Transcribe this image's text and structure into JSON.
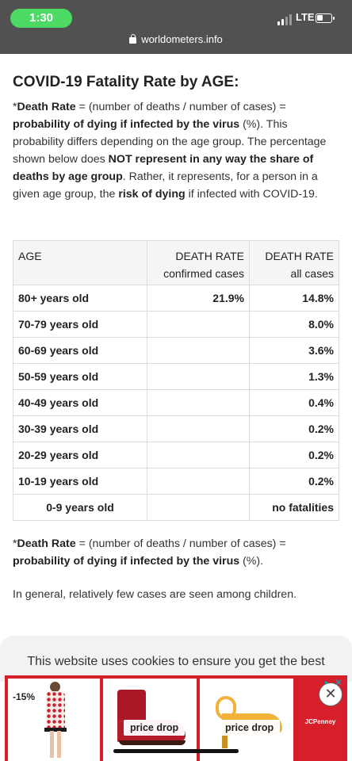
{
  "status_bar": {
    "time": "1:30",
    "network": "LTE",
    "url": "worldometers.info"
  },
  "article": {
    "title": "COVID-19 Fatality Rate by AGE:",
    "intro": {
      "note_mark": "*",
      "term": "Death Rate",
      "formula": " = (number of deaths / number of cases) = ",
      "bold1": "probability of dying if infected by the virus",
      "text1": " (%). This probability differs depending on the age group. The percentage shown below does ",
      "bold2": "NOT represent in any way the share of deaths by age group",
      "text2": ". Rather, it represents, for a person in a given age group, the ",
      "bold3": "risk of dying",
      "text3": " if infected with COVID-19."
    },
    "footnote": {
      "note_mark": "*",
      "term": "Death Rate",
      "formula": " = (number of deaths / number of cases) = ",
      "bold1": "probability of dying if infected by the virus",
      "text1": " (%)."
    },
    "closing": "In general, relatively few cases are seen among children."
  },
  "table": {
    "headers": {
      "age": "AGE",
      "confirmed_line1": "DEATH RATE",
      "confirmed_line2": "confirmed cases",
      "all_line1": "DEATH RATE",
      "all_line2": "all cases"
    },
    "rows": [
      {
        "age": "80+ years old",
        "confirmed": "21.9%",
        "all": "14.8%"
      },
      {
        "age": "70-79 years old",
        "confirmed": "",
        "all": "8.0%"
      },
      {
        "age": "60-69 years old",
        "confirmed": "",
        "all": "3.6%"
      },
      {
        "age": "50-59 years old",
        "confirmed": "",
        "all": "1.3%"
      },
      {
        "age": "40-49 years old",
        "confirmed": "",
        "all": "0.4%"
      },
      {
        "age": "30-39 years old",
        "confirmed": "",
        "all": "0.2%"
      },
      {
        "age": "20-29 years old",
        "confirmed": "",
        "all": "0.2%"
      },
      {
        "age": "10-19 years old",
        "confirmed": "",
        "all": "0.2%"
      },
      {
        "age": "0-9 years old",
        "confirmed": "",
        "all": "no fatalities"
      }
    ]
  },
  "cookie_banner": {
    "text": "This website uses cookies to ensure you get the best"
  },
  "ad": {
    "discount": "-15%",
    "price_tag_1": "price drop",
    "price_tag_2": "price drop",
    "brand": "JCPenney",
    "close_symbol": "✕"
  },
  "colors": {
    "status_bar_bg": "#515151",
    "time_pill": "#4cd964",
    "ad_red": "#d61f2b",
    "adchoices_blue": "#00aecd"
  }
}
